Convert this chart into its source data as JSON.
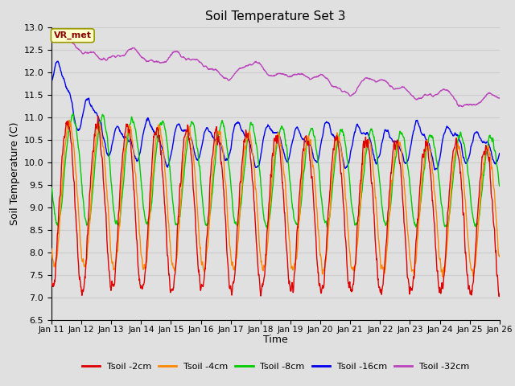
{
  "title": "Soil Temperature Set 3",
  "xlabel": "Time",
  "ylabel": "Soil Temperature (C)",
  "ylim": [
    6.5,
    13.0
  ],
  "yticks": [
    6.5,
    7.0,
    7.5,
    8.0,
    8.5,
    9.0,
    9.5,
    10.0,
    10.5,
    11.0,
    11.5,
    12.0,
    12.5,
    13.0
  ],
  "xtick_labels": [
    "Jan 11",
    "Jan 12",
    "Jan 13",
    "Jan 14",
    "Jan 15",
    "Jan 16",
    "Jan 17",
    "Jan 18",
    "Jan 19",
    "Jan 20",
    "Jan 21",
    "Jan 22",
    "Jan 23",
    "Jan 24",
    "Jan 25",
    "Jan 26"
  ],
  "line_colors": {
    "Tsoil -2cm": "#dd0000",
    "Tsoil -4cm": "#ff8800",
    "Tsoil -8cm": "#00cc00",
    "Tsoil -16cm": "#0000ee",
    "Tsoil -32cm": "#bb44bb"
  },
  "line_width": 1.0,
  "bg_color": "#e0e0e0",
  "grid_color": "#cccccc",
  "annotation_text": "VR_met",
  "annotation_bg": "#ffffcc",
  "annotation_border": "#999900"
}
